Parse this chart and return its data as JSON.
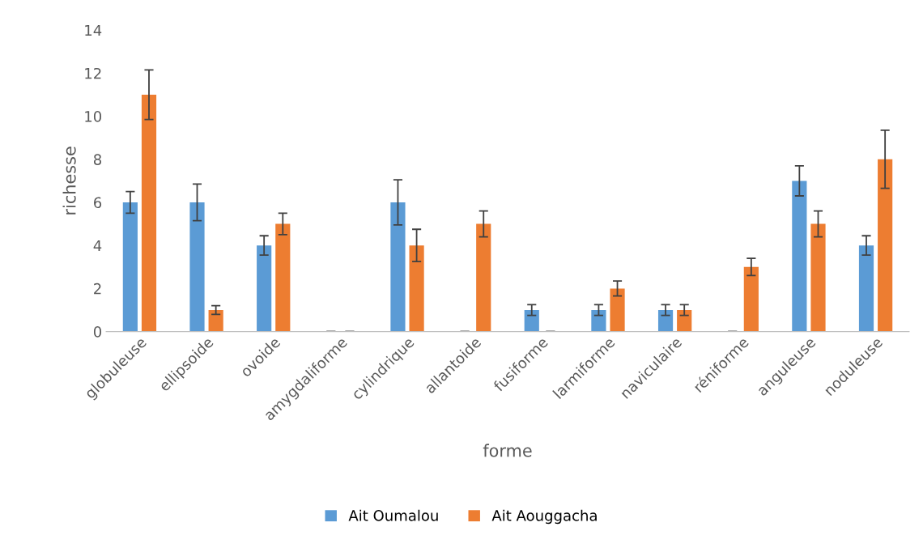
{
  "chart_data": {
    "type": "bar",
    "xlabel": "forme",
    "ylabel": "richesse",
    "categories": [
      "globuleuse",
      "ellipsoide",
      "ovoide",
      "amygdaliforme",
      "cylindrique",
      "allantoide",
      "fusiforme",
      "larmiforme",
      "naviculaire",
      "réniforme",
      "anguleuse",
      "noduleuse"
    ],
    "series": [
      {
        "name": "Ait Oumalou",
        "color": "#5b9bd5",
        "values": [
          6,
          6,
          4,
          0,
          6,
          0,
          1,
          1,
          1,
          0,
          7,
          4
        ],
        "errors": [
          0.5,
          0.85,
          0.45,
          0,
          1.05,
          0,
          0.25,
          0.25,
          0.25,
          0,
          0.7,
          0.45
        ]
      },
      {
        "name": "Ait Aouggacha",
        "color": "#ed7d31",
        "values": [
          11,
          1,
          5,
          0,
          4,
          5,
          0,
          2,
          1,
          3,
          5,
          8
        ],
        "errors": [
          1.15,
          0.2,
          0.5,
          0,
          0.75,
          0.6,
          0,
          0.35,
          0.25,
          0.4,
          0.6,
          1.35
        ]
      }
    ],
    "ylim": [
      0,
      14
    ],
    "yticks": [
      0,
      2,
      4,
      6,
      8,
      10,
      12,
      14
    ],
    "grid": false,
    "legend": "bottom"
  }
}
